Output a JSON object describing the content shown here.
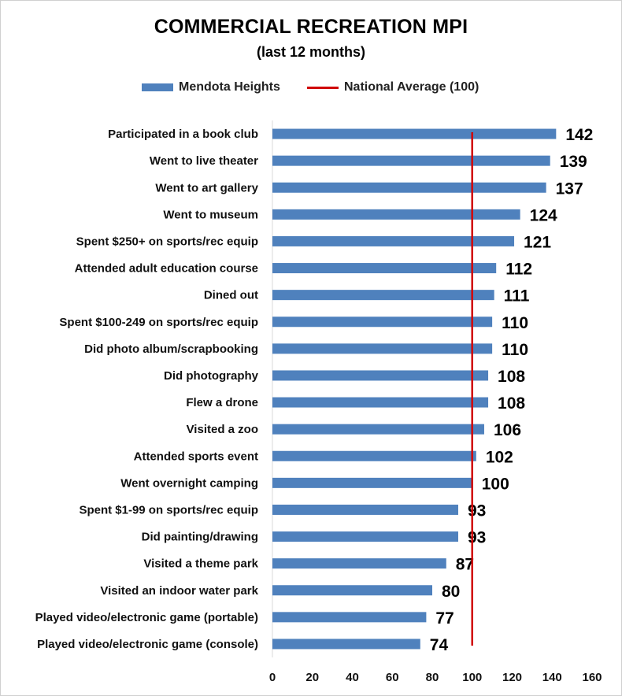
{
  "chart_data": {
    "type": "bar",
    "orientation": "horizontal",
    "title": "COMMERCIAL RECREATION MPI",
    "subtitle": "(last 12 months)",
    "categories": [
      "Participated in a book club",
      "Went to live theater",
      "Went to art gallery",
      "Went to museum",
      "Spent  $250+ on sports/rec equip",
      "Attended adult education course",
      "Dined out",
      "Spent $100-249 on sports/rec equip",
      "Did photo album/scrapbooking",
      "Did photography",
      "Flew a drone",
      "Visited a zoo",
      "Attended sports event",
      "Went overnight camping",
      "Spent  $1-99 on sports/rec equip",
      "Did painting/drawing",
      "Visited a theme park",
      "Visited an indoor water park",
      "Played video/electronic game (portable)",
      "Played video/electronic game (console)"
    ],
    "series": [
      {
        "name": "Mendota Heights",
        "color": "#4f81bd",
        "values": [
          142,
          139,
          137,
          124,
          121,
          112,
          111,
          110,
          110,
          108,
          108,
          106,
          102,
          100,
          93,
          93,
          87,
          80,
          77,
          74
        ]
      }
    ],
    "reference_line": {
      "name": "National Average (100)",
      "value": 100,
      "color": "#d00000"
    },
    "xlim": [
      0,
      160
    ],
    "xticks": [
      0,
      20,
      40,
      60,
      80,
      100,
      120,
      140,
      160
    ],
    "grid": false,
    "legend_position": "top-center"
  }
}
